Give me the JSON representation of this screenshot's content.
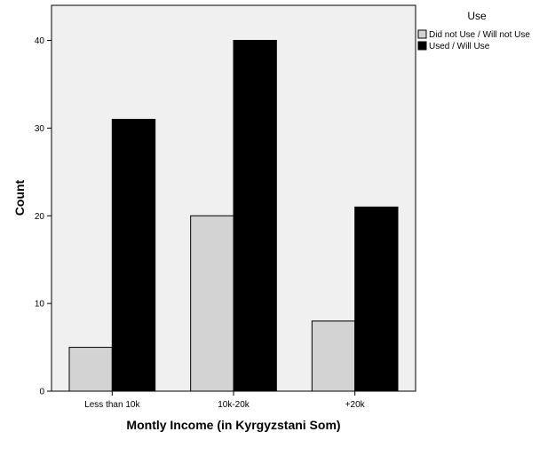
{
  "chart_data": {
    "type": "bar",
    "title": "",
    "xlabel": "Montly Income (in Kyrgyzstani Som)",
    "ylabel": "Count",
    "categories": [
      "Less than 10k",
      "10k-20k",
      "+20k"
    ],
    "series": [
      {
        "name": "Did not Use / Will not Use",
        "values": [
          5,
          20,
          8
        ],
        "color": "#d3d3d3"
      },
      {
        "name": "Used / Will Use",
        "values": [
          31,
          40,
          21
        ],
        "color": "#000000"
      }
    ],
    "ylim": [
      0,
      44
    ],
    "yticks": [
      0,
      10,
      20,
      30,
      40
    ],
    "grid": false,
    "legend": {
      "title": "Use",
      "position": "top-right"
    },
    "plot_background": "#f0f0f0"
  }
}
